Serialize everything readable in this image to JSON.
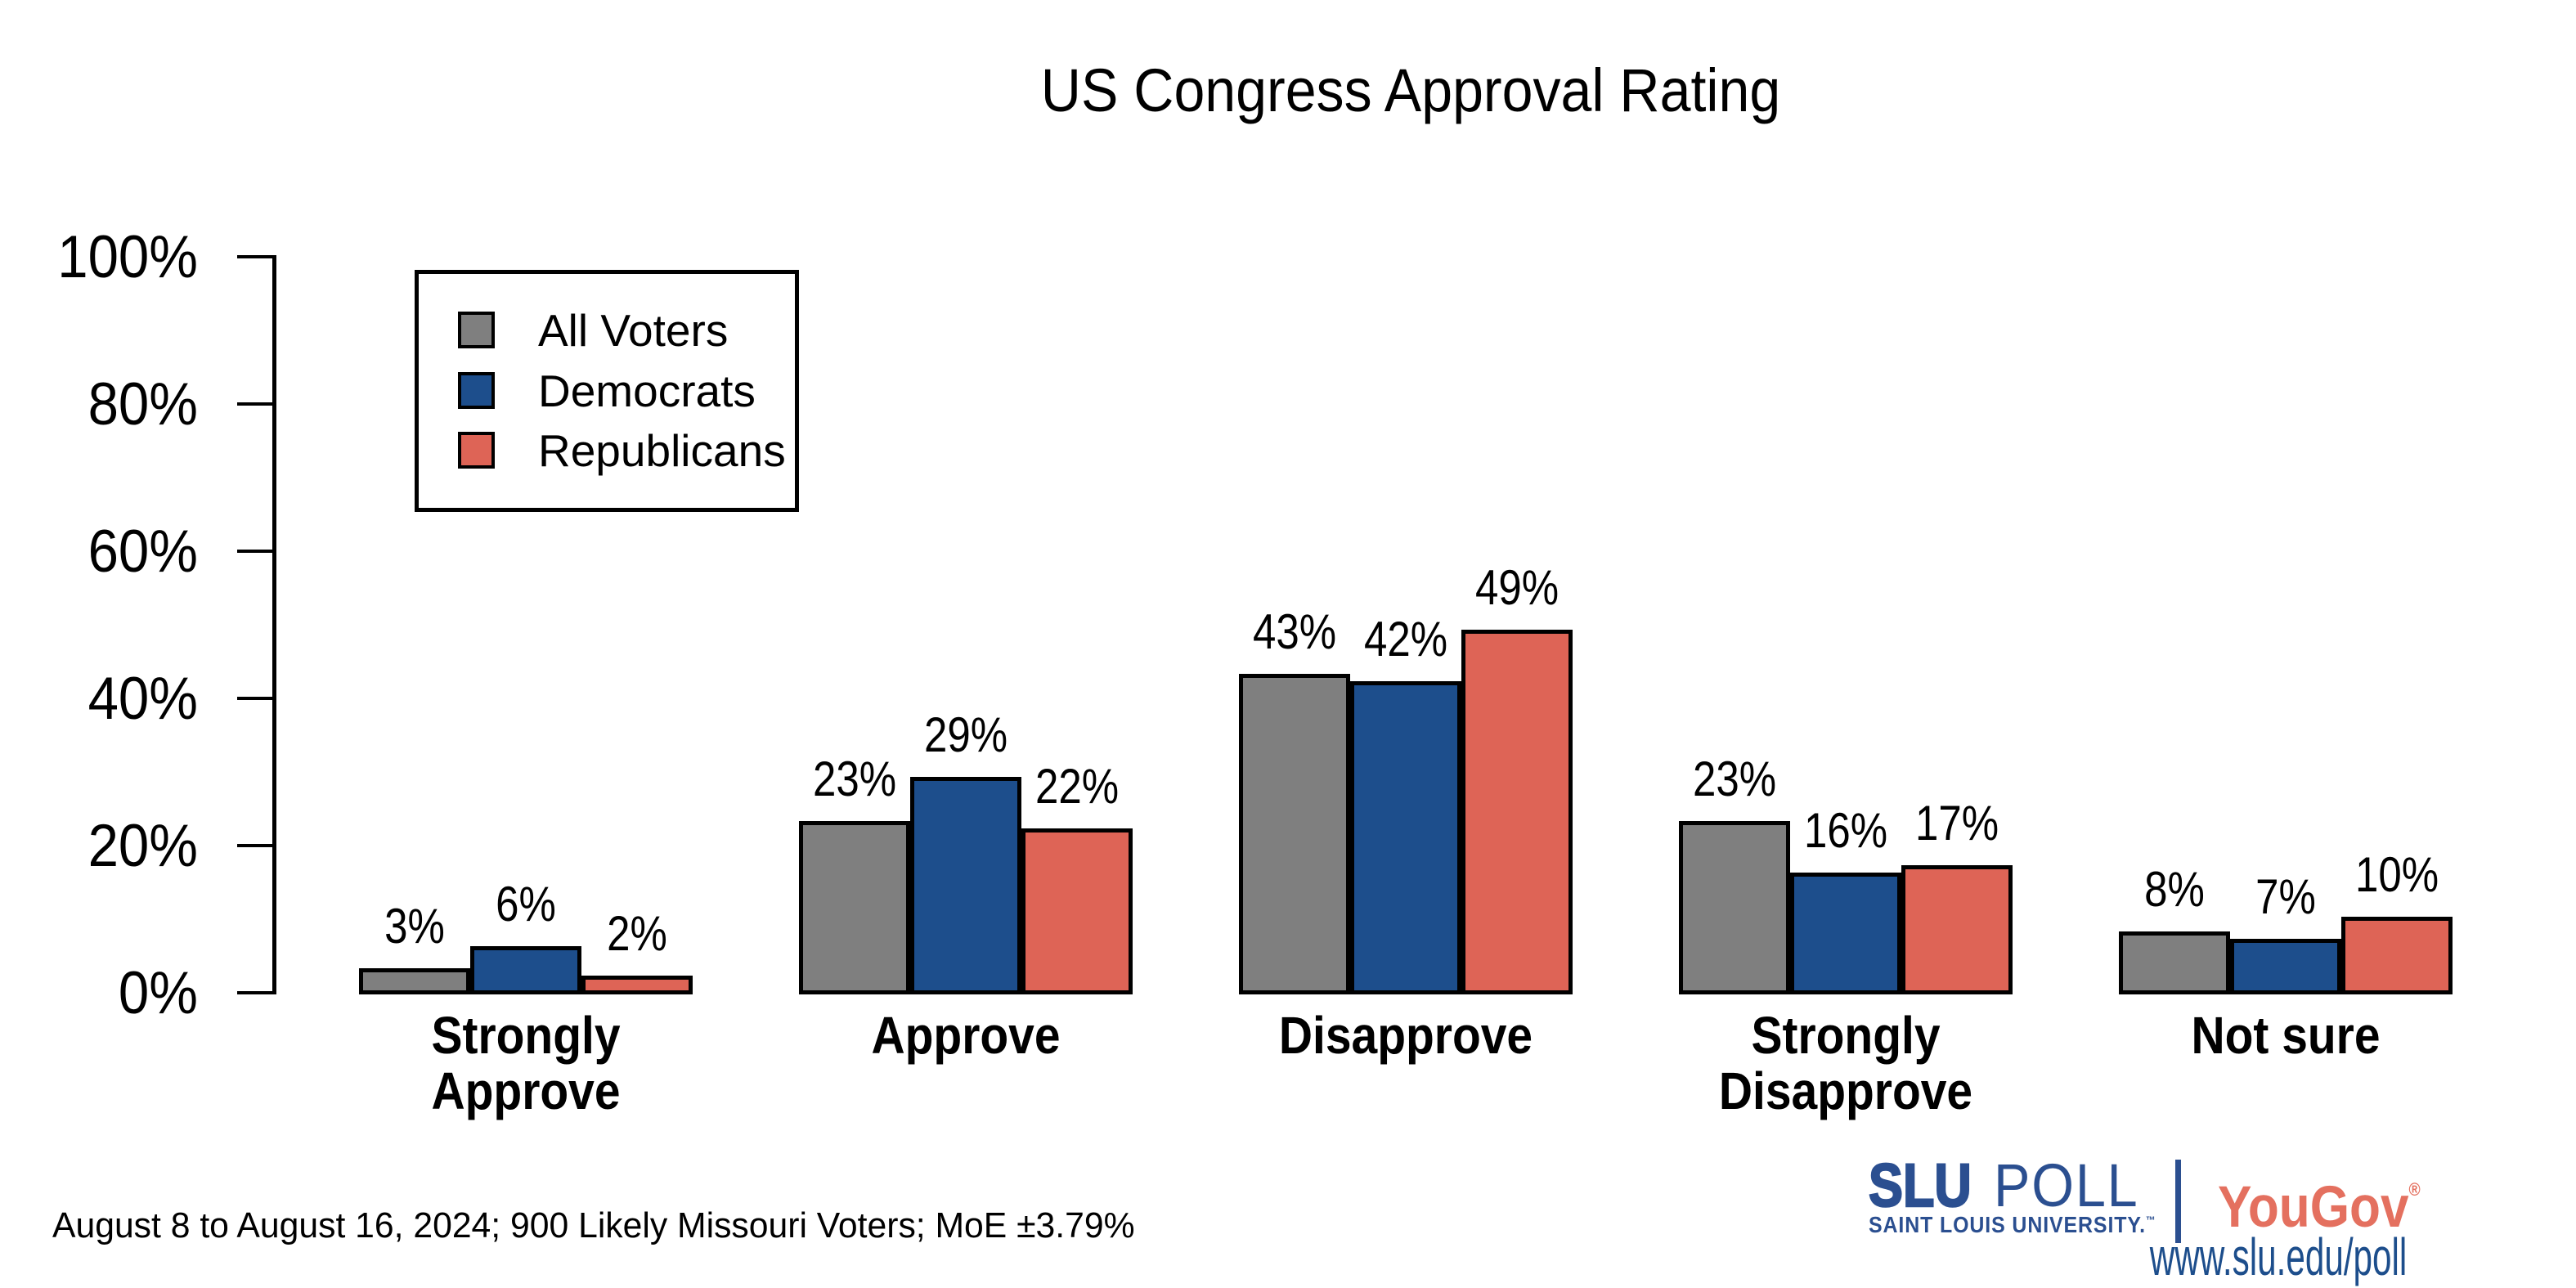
{
  "title": "US Congress Approval Rating",
  "chart_data": {
    "type": "bar",
    "categories": [
      "Strongly Approve",
      "Approve",
      "Disapprove",
      "Strongly Disapprove",
      "Not sure"
    ],
    "categories_lines": [
      [
        "Strongly",
        "Approve"
      ],
      [
        "Approve"
      ],
      [
        "Disapprove"
      ],
      [
        "Strongly",
        "Disapprove"
      ],
      [
        "Not sure"
      ]
    ],
    "series": [
      {
        "name": "All Voters",
        "color": "#7F7F7F",
        "values": [
          3,
          23,
          43,
          23,
          8
        ]
      },
      {
        "name": "Democrats",
        "color": "#1D4E8C",
        "values": [
          6,
          29,
          42,
          16,
          7
        ]
      },
      {
        "name": "Republicans",
        "color": "#DE6456",
        "values": [
          2,
          22,
          49,
          17,
          10
        ]
      }
    ],
    "value_suffix": "%",
    "ylabel_ticks": [
      "0%",
      "20%",
      "40%",
      "60%",
      "80%",
      "100%"
    ],
    "ylim": [
      0,
      100
    ],
    "grid": false,
    "legend_position": "top-left"
  },
  "footer": {
    "note": "August 8 to August 16, 2024; 900 Likely Missouri Voters; MoE ±3.79%"
  },
  "branding": {
    "slu_bold": "SLU",
    "slu_light": "POLL",
    "slu_sub": "SAINT LOUIS UNIVERSITY.",
    "slu_tm": "™",
    "yougov": "YouGov",
    "yougov_reg": "®",
    "url": "www.slu.edu/poll",
    "slu_blue": "#2B4F90",
    "yougov_red": "#E4705F",
    "url_blue": "#1D4E8C"
  }
}
